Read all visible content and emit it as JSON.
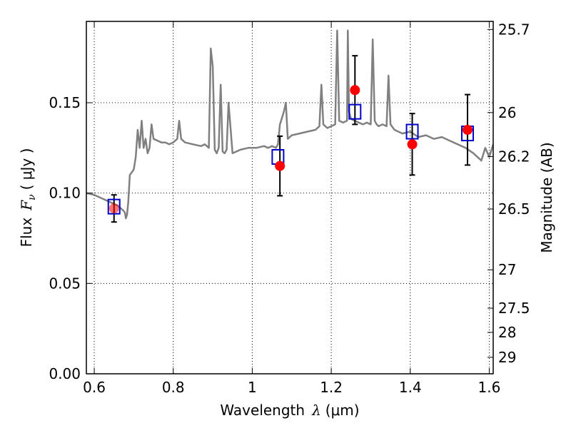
{
  "chart_data": {
    "type": "scatter",
    "xlabel": {
      "prefix": "Wavelength",
      "symbol": "λ",
      "unit": "(μm)"
    },
    "ylabel": {
      "prefix": "Flux",
      "symbol": "F",
      "subscript": "ν",
      "unit": "( μJy )"
    },
    "y2label": "Magnitude (AB)",
    "xlim": [
      0.58,
      1.61
    ],
    "ylim": [
      0.0,
      0.195
    ],
    "grid": true,
    "grid_style": "dotted",
    "x_ticks": [
      0.6,
      0.8,
      1.0,
      1.2,
      1.4,
      1.6
    ],
    "x_tick_labels": [
      "0.6",
      "0.8",
      "1",
      "1.2",
      "1.4",
      "1.6"
    ],
    "y_ticks": [
      0.0,
      0.05,
      0.1,
      0.15
    ],
    "y_tick_labels": [
      "0.00",
      "0.05",
      "0.10",
      "0.15"
    ],
    "y2_ticks": [
      {
        "label": "25.7",
        "mag": 25.7
      },
      {
        "label": "26",
        "mag": 26.0
      },
      {
        "label": "26.2",
        "mag": 26.2
      },
      {
        "label": "26.5",
        "mag": 26.5
      },
      {
        "label": "27",
        "mag": 27.0
      },
      {
        "label": "27.5",
        "mag": 27.5
      },
      {
        "label": "28",
        "mag": 28.0
      },
      {
        "label": "29",
        "mag": 29.0
      }
    ],
    "series": [
      {
        "kind": "model-spectrum",
        "color": "#808080",
        "x": [
          0.58,
          0.6,
          0.62,
          0.64,
          0.66,
          0.675,
          0.678,
          0.68,
          0.683,
          0.686,
          0.69,
          0.7,
          0.705,
          0.71,
          0.715,
          0.72,
          0.725,
          0.73,
          0.735,
          0.74,
          0.745,
          0.75,
          0.76,
          0.77,
          0.78,
          0.79,
          0.8,
          0.81,
          0.815,
          0.82,
          0.83,
          0.85,
          0.87,
          0.88,
          0.89,
          0.895,
          0.9,
          0.905,
          0.91,
          0.915,
          0.92,
          0.925,
          0.93,
          0.935,
          0.94,
          0.95,
          0.97,
          0.99,
          1.01,
          1.03,
          1.04,
          1.05,
          1.06,
          1.065,
          1.07,
          1.08,
          1.085,
          1.09,
          1.1,
          1.12,
          1.14,
          1.16,
          1.17,
          1.175,
          1.18,
          1.19,
          1.2,
          1.21,
          1.215,
          1.22,
          1.23,
          1.24,
          1.242,
          1.245,
          1.25,
          1.26,
          1.27,
          1.28,
          1.29,
          1.3,
          1.305,
          1.31,
          1.315,
          1.32,
          1.33,
          1.34,
          1.345,
          1.35,
          1.36,
          1.38,
          1.4,
          1.42,
          1.44,
          1.46,
          1.48,
          1.5,
          1.52,
          1.54,
          1.56,
          1.58,
          1.59,
          1.6,
          1.61
        ],
        "y": [
          0.1,
          0.099,
          0.097,
          0.095,
          0.093,
          0.09,
          0.089,
          0.086,
          0.088,
          0.095,
          0.11,
          0.113,
          0.12,
          0.135,
          0.125,
          0.14,
          0.125,
          0.13,
          0.122,
          0.125,
          0.138,
          0.13,
          0.129,
          0.128,
          0.128,
          0.127,
          0.128,
          0.13,
          0.14,
          0.13,
          0.128,
          0.127,
          0.126,
          0.127,
          0.125,
          0.18,
          0.17,
          0.124,
          0.122,
          0.125,
          0.16,
          0.123,
          0.122,
          0.124,
          0.15,
          0.122,
          0.124,
          0.125,
          0.125,
          0.126,
          0.125,
          0.126,
          0.125,
          0.127,
          0.138,
          0.145,
          0.15,
          0.13,
          0.132,
          0.133,
          0.134,
          0.135,
          0.137,
          0.16,
          0.138,
          0.136,
          0.137,
          0.138,
          0.19,
          0.14,
          0.139,
          0.14,
          0.19,
          0.145,
          0.141,
          0.14,
          0.139,
          0.138,
          0.139,
          0.138,
          0.185,
          0.14,
          0.138,
          0.137,
          0.138,
          0.137,
          0.165,
          0.138,
          0.135,
          0.133,
          0.134,
          0.131,
          0.132,
          0.13,
          0.131,
          0.129,
          0.127,
          0.125,
          0.122,
          0.118,
          0.125,
          0.12,
          0.127
        ]
      },
      {
        "kind": "model-photometry",
        "marker": "open-square",
        "color": "#0000cc",
        "x": [
          0.65,
          1.065,
          1.26,
          1.405,
          1.545
        ],
        "y": [
          0.0925,
          0.12,
          0.145,
          0.134,
          0.133
        ]
      },
      {
        "kind": "observed-photometry",
        "marker": "filled-circle",
        "color": "#ff0000",
        "x": [
          0.65,
          1.07,
          1.26,
          1.405,
          1.545
        ],
        "y": [
          0.0915,
          0.115,
          0.157,
          0.127,
          0.135
        ],
        "yerr_low": [
          0.0075,
          0.0165,
          0.019,
          0.017,
          0.0195
        ],
        "yerr_high": [
          0.0075,
          0.0165,
          0.019,
          0.017,
          0.0195
        ]
      }
    ]
  }
}
